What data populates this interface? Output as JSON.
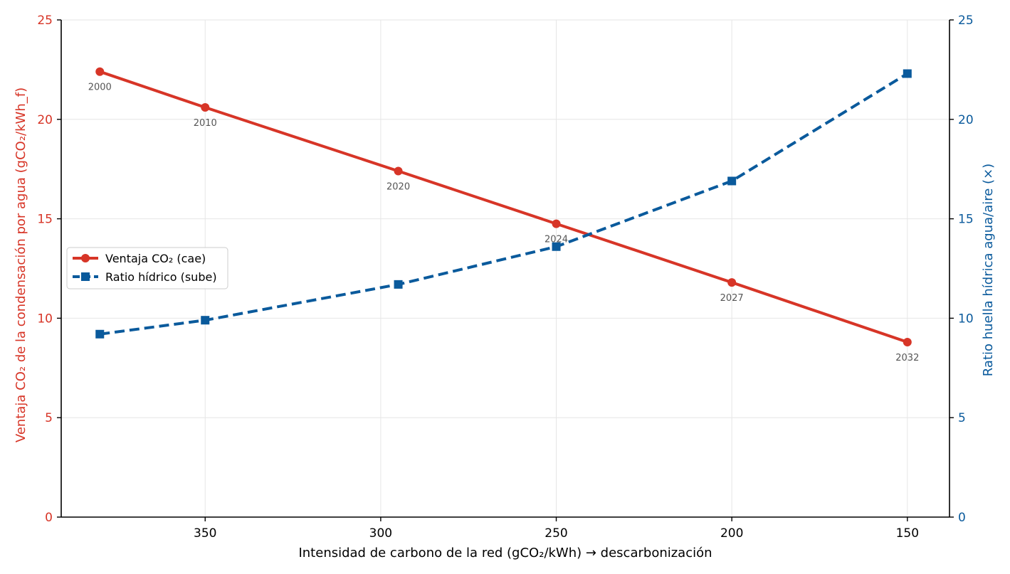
{
  "chart_data": {
    "type": "line",
    "xlabel": "Intensidad de carbono de la red (gCO₂/kWh)  →  descarbonización",
    "ylabel_left": "Ventaja CO₂ de la condensación por agua (gCO₂/kWh_f)",
    "ylabel_right": "Ratio huella hídrica agua/aire (×)",
    "x_reversed": true,
    "xlim": [
      391,
      138
    ],
    "xticks": [
      350,
      300,
      250,
      200,
      150
    ],
    "ylim_left": [
      0,
      25
    ],
    "ylim_right": [
      0,
      25
    ],
    "yticks_left": [
      0,
      5,
      10,
      15,
      20,
      25
    ],
    "yticks_right": [
      0,
      5,
      10,
      15,
      20,
      25
    ],
    "grid": true,
    "legend_position": "center-left",
    "series": [
      {
        "name": "Ventaja CO₂ (cae)",
        "axis": "left",
        "color": "#d73527",
        "style": "solid",
        "marker": "circle",
        "x": [
          380,
          350,
          295,
          250,
          200,
          150
        ],
        "y": [
          22.4,
          20.6,
          17.4,
          14.75,
          11.8,
          8.8
        ],
        "point_labels": [
          "2000",
          "2010",
          "2020",
          "2024",
          "2027",
          "2032"
        ]
      },
      {
        "name": "Ratio hídrico (sube)",
        "axis": "right",
        "color": "#0a5a9c",
        "style": "dashed",
        "marker": "square",
        "x": [
          380,
          350,
          295,
          250,
          200,
          150
        ],
        "y": [
          9.2,
          9.9,
          11.7,
          13.6,
          16.9,
          22.3
        ]
      }
    ]
  }
}
